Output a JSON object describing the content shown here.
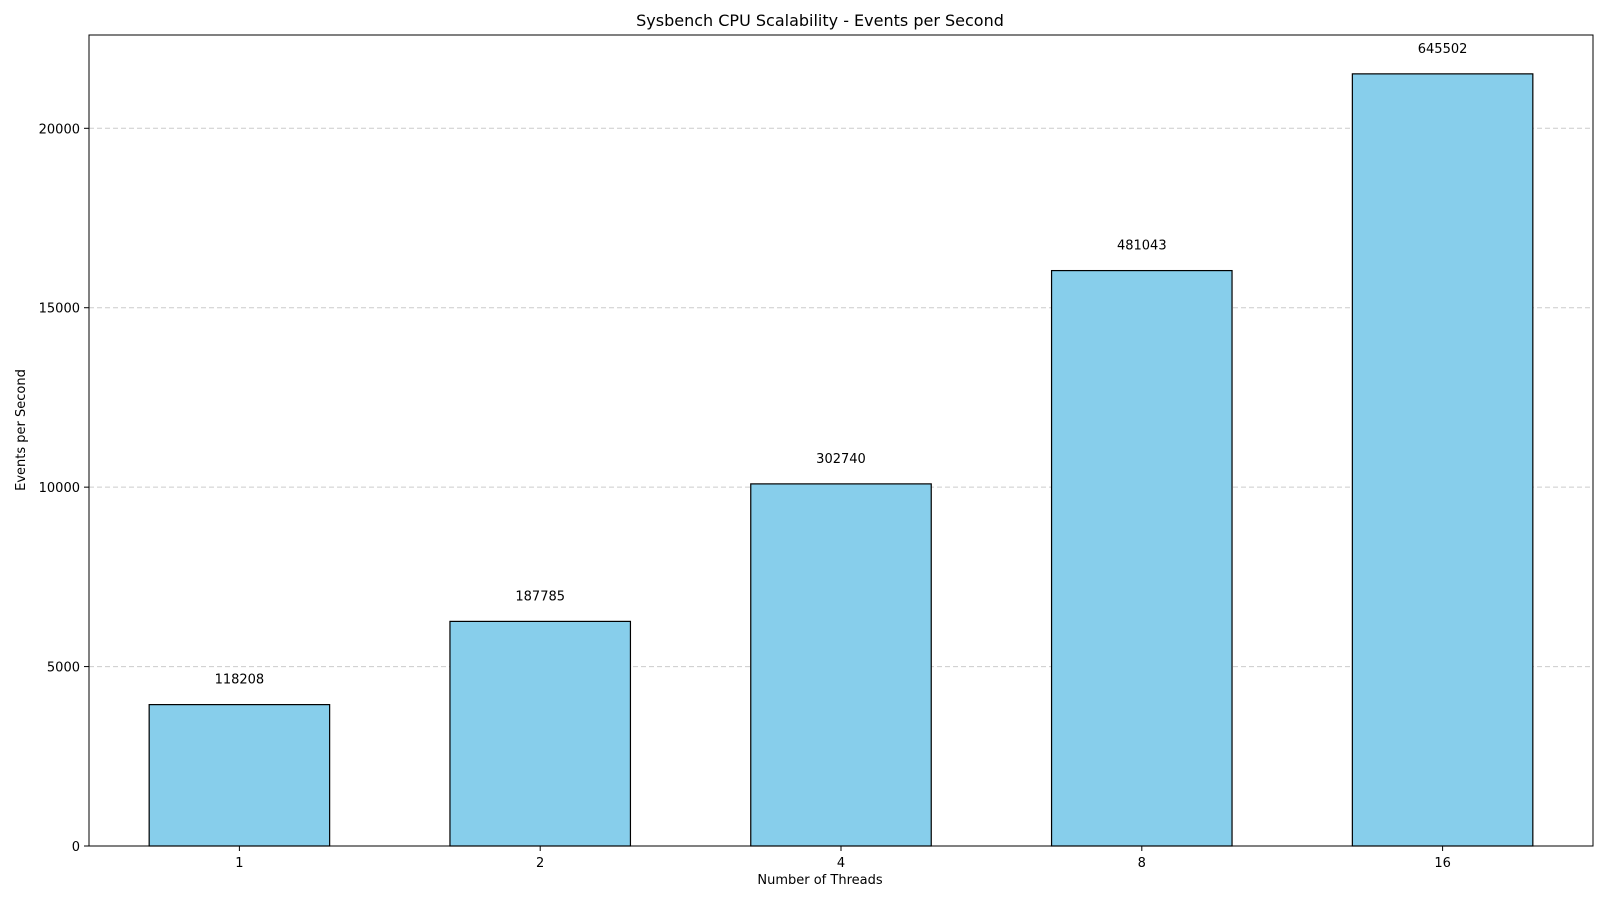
{
  "chart_data": {
    "type": "bar",
    "title": "Sysbench CPU Scalability - Events per Second",
    "xlabel": "Number of Threads",
    "ylabel": "Events per Second",
    "categories": [
      "1",
      "2",
      "4",
      "8",
      "16"
    ],
    "values": [
      3940,
      6259,
      10091,
      16035,
      21517
    ],
    "data_labels": [
      "118208",
      "187785",
      "302740",
      "481043",
      "645502"
    ],
    "ylim": [
      0,
      22600
    ],
    "yticks": [
      0,
      5000,
      10000,
      15000,
      20000
    ],
    "grid": "y-dashed",
    "colors": {
      "bar_fill": "#87CEEB",
      "bar_edge": "#000000",
      "grid": "#cccccc"
    }
  }
}
